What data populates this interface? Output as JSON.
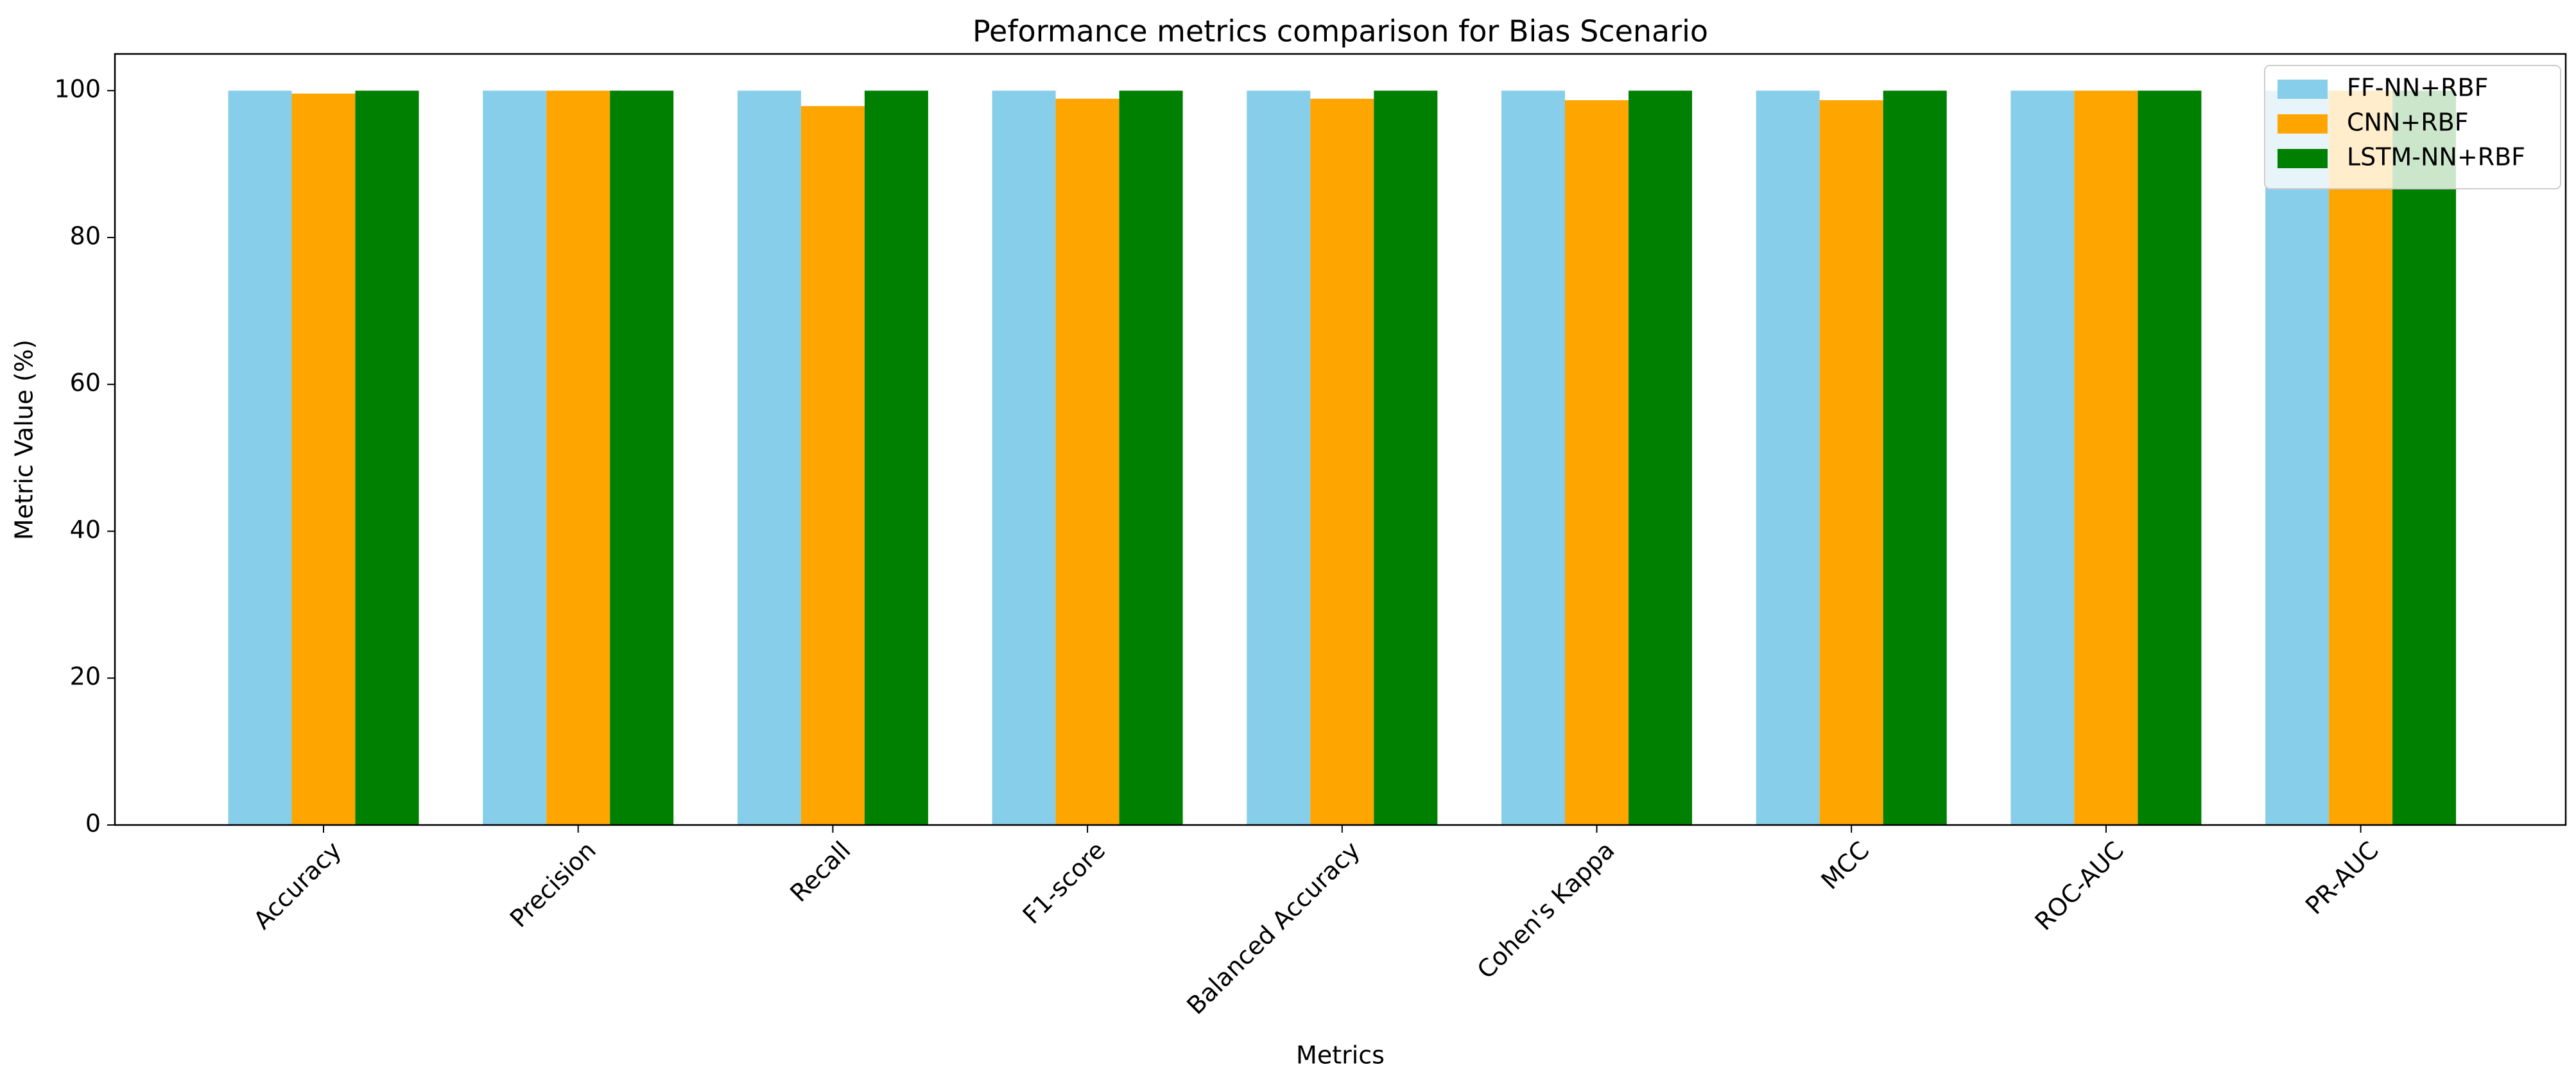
{
  "chart_data": {
    "type": "bar",
    "title": "Peformance metrics comparison for Bias Scenario",
    "x_label": "Metrics",
    "y_label": "Metric Value (%)",
    "categories": [
      "Accuracy",
      "Precision",
      "Recall",
      "F1-score",
      "Balanced Accuracy",
      "Cohen's Kappa",
      "MCC",
      "ROC-AUC",
      "PR-AUC"
    ],
    "series": [
      {
        "name": "FF-NN+RBF",
        "color": "#87ceeb",
        "values": [
          100,
          100,
          100,
          100,
          100,
          100,
          100,
          100,
          100
        ]
      },
      {
        "name": "CNN+RBF",
        "color": "#ffa500",
        "values": [
          99.6,
          100,
          97.9,
          98.9,
          98.9,
          98.7,
          98.7,
          100,
          100
        ]
      },
      {
        "name": "LSTM-NN+RBF",
        "color": "#008000",
        "values": [
          100,
          100,
          100,
          100,
          100,
          100,
          100,
          100,
          100
        ]
      }
    ],
    "ylim": [
      0,
      105
    ],
    "yticks": [
      0,
      20,
      40,
      60,
      80,
      100
    ],
    "legend": "upper right",
    "grid": false
  }
}
